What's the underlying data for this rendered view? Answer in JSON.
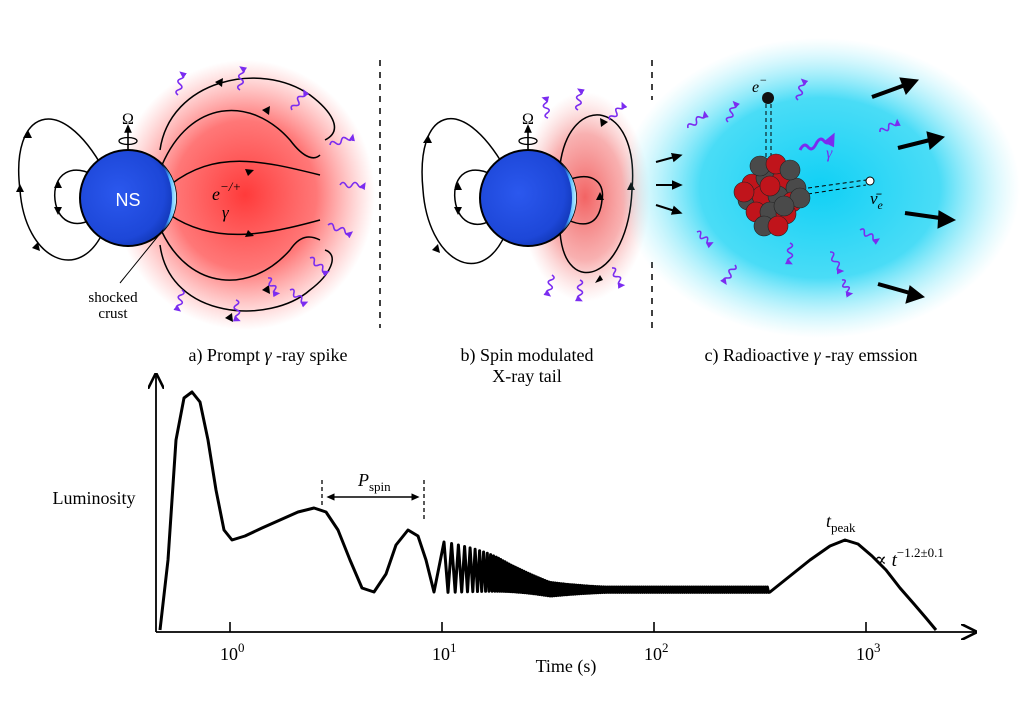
{
  "panel_a": {
    "caption_prefix": "a) Prompt ",
    "caption_gamma": "γ",
    "caption_suffix": " -ray spike",
    "star_label": "NS",
    "omega": "Ω",
    "particle_base": "e",
    "particle_sup": "−/+",
    "particle_gamma": "γ",
    "crust_line1": "shocked",
    "crust_line2": "crust"
  },
  "panel_b": {
    "caption_line1": "b) Spin modulated",
    "caption_line2": "X-ray tail",
    "omega": "Ω"
  },
  "panel_c": {
    "caption_prefix": "c) Radioactive ",
    "caption_gamma": "γ",
    "caption_suffix": " -ray emssion",
    "electron_base": "e",
    "electron_sup": "−",
    "gamma_label": "γ",
    "neutrino_base": "ν̄",
    "neutrino_sub": "e"
  },
  "lightcurve": {
    "ylabel": "Luminosity",
    "xlabel": "Time  (s)",
    "ticks": [
      {
        "base": "10",
        "exp": "0"
      },
      {
        "base": "10",
        "exp": "1"
      },
      {
        "base": "10",
        "exp": "2"
      },
      {
        "base": "10",
        "exp": "3"
      }
    ],
    "pspin_base": "P",
    "pspin_sub": "spin",
    "tpeak_base": "t",
    "tpeak_sub": "peak",
    "powerlaw_prefix": "∝ t",
    "powerlaw_exp": "−1.2±0.1"
  },
  "colors": {
    "neutron_star": "#1f4fe0",
    "prompt_glow": "#ff3b3b",
    "tail_glow": "#f26a6a",
    "kilonova_glow": "#22d3f2",
    "photon": "#7b2cf0",
    "nucleus_red": "#c0141b",
    "nucleus_gray": "#4a4a4a"
  }
}
